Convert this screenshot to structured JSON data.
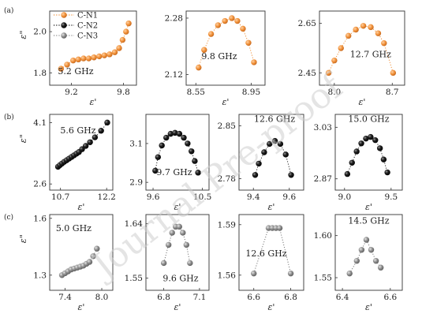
{
  "watermark": "Journal Pre-proof",
  "row_labels": [
    "(a)",
    "(b)",
    "(c)"
  ],
  "legend": [
    {
      "name": "C-N1",
      "color": "#f0913a"
    },
    {
      "name": "C-N2",
      "color": "#111111"
    },
    {
      "name": "C-N3",
      "color": "#8a8a8a"
    }
  ],
  "axis_labels": {
    "x": "ε'",
    "y": "ε\""
  },
  "chart_data": [
    {
      "type": "scatter",
      "panel": "a1",
      "series": "C-N1",
      "annotation": "5.2 GHz",
      "xlim": [
        8.95,
        9.95
      ],
      "ylim": [
        1.74,
        2.1
      ],
      "xticks": [
        "9.2",
        "9.8"
      ],
      "yticks": [
        "1.8",
        "2.0"
      ],
      "x": [
        9.08,
        9.15,
        9.22,
        9.28,
        9.34,
        9.4,
        9.46,
        9.52,
        9.58,
        9.64,
        9.7,
        9.75,
        9.79,
        9.83,
        9.86
      ],
      "y": [
        1.82,
        1.84,
        1.86,
        1.865,
        1.87,
        1.87,
        1.875,
        1.88,
        1.885,
        1.89,
        1.9,
        1.92,
        1.96,
        2.0,
        2.04
      ]
    },
    {
      "type": "scatter",
      "panel": "a2",
      "series": "C-N1",
      "annotation": "9.8 GHz",
      "xlim": [
        8.48,
        9.05
      ],
      "ylim": [
        2.09,
        2.3
      ],
      "xticks": [
        "8.55",
        "8.95"
      ],
      "yticks": [
        "2.12",
        "2.28"
      ],
      "x": [
        8.57,
        8.61,
        8.66,
        8.71,
        8.76,
        8.81,
        8.85,
        8.89,
        8.93,
        8.97
      ],
      "y": [
        2.14,
        2.19,
        2.235,
        2.26,
        2.272,
        2.28,
        2.272,
        2.25,
        2.21,
        2.155
      ]
    },
    {
      "type": "scatter",
      "panel": "a3",
      "series": "C-N1",
      "annotation": "12.7 GHz",
      "xlim": [
        7.82,
        8.85
      ],
      "ylim": [
        2.4,
        2.7
      ],
      "xticks": [
        "8.0",
        "8.7"
      ],
      "yticks": [
        "2.45",
        "2.65"
      ],
      "x": [
        7.93,
        8.0,
        8.08,
        8.17,
        8.26,
        8.35,
        8.44,
        8.53,
        8.6,
        8.71
      ],
      "y": [
        2.45,
        2.5,
        2.55,
        2.6,
        2.625,
        2.64,
        2.635,
        2.61,
        2.57,
        2.45
      ]
    },
    {
      "type": "scatter",
      "panel": "b1",
      "series": "C-N2",
      "annotation": "5.6 GHz",
      "xlim": [
        10.35,
        12.4
      ],
      "ylim": [
        2.45,
        4.3
      ],
      "xticks": [
        "10.7",
        "12.2"
      ],
      "yticks": [
        "2.6",
        "4.1"
      ],
      "x": [
        10.62,
        10.68,
        10.75,
        10.82,
        10.9,
        10.98,
        11.06,
        11.14,
        11.22,
        11.3,
        11.4,
        11.52,
        11.66,
        11.82,
        12.02,
        12.22
      ],
      "y": [
        3.02,
        3.06,
        3.1,
        3.14,
        3.18,
        3.22,
        3.26,
        3.3,
        3.34,
        3.38,
        3.45,
        3.53,
        3.62,
        3.74,
        3.9,
        4.1
      ]
    },
    {
      "type": "scatter",
      "panel": "b2",
      "series": "C-N2",
      "annotation": "9.7 GHz",
      "xlim": [
        9.47,
        10.62
      ],
      "ylim": [
        2.86,
        3.25
      ],
      "xticks": [
        "9.6",
        "10.5"
      ],
      "yticks": [
        "2.9",
        "3.1"
      ],
      "x": [
        9.64,
        9.69,
        9.76,
        9.84,
        9.92,
        10.0,
        10.08,
        10.16,
        10.23,
        10.3,
        10.36,
        10.42
      ],
      "y": [
        2.96,
        3.03,
        3.09,
        3.13,
        3.15,
        3.155,
        3.15,
        3.13,
        3.1,
        3.06,
        3.01,
        2.95
      ]
    },
    {
      "type": "scatter",
      "panel": "b3",
      "series": "C-N2",
      "annotation": "12.6 GHz",
      "xlim": [
        9.32,
        9.68
      ],
      "ylim": [
        2.765,
        2.865
      ],
      "xticks": [
        "9.4",
        "9.6"
      ],
      "yticks": [
        "2.78",
        "2.85"
      ],
      "x": [
        9.41,
        9.43,
        9.46,
        9.49,
        9.52,
        9.55,
        9.58,
        9.61
      ],
      "y": [
        2.785,
        2.8,
        2.815,
        2.826,
        2.83,
        2.826,
        2.812,
        2.785
      ]
    },
    {
      "type": "scatter",
      "panel": "b4",
      "series": "C-N2",
      "annotation": "15.0 GHz",
      "xlim": [
        8.9,
        9.62
      ],
      "ylim": [
        2.835,
        3.07
      ],
      "xticks": [
        "9.0",
        "9.5"
      ],
      "yticks": [
        "2.87",
        "3.03"
      ],
      "x": [
        9.03,
        9.08,
        9.13,
        9.18,
        9.23,
        9.28,
        9.33,
        9.38,
        9.42,
        9.46
      ],
      "y": [
        2.885,
        2.92,
        2.955,
        2.98,
        2.995,
        3.0,
        2.99,
        2.965,
        2.93,
        2.89
      ]
    },
    {
      "type": "scatter",
      "panel": "c1",
      "series": "C-N3",
      "annotation": "5.0 GHz",
      "xlim": [
        7.15,
        8.18
      ],
      "ylim": [
        1.22,
        1.62
      ],
      "xticks": [
        "7.4",
        "8.0"
      ],
      "yticks": [
        "1.3",
        "1.6"
      ],
      "x": [
        7.35,
        7.4,
        7.45,
        7.5,
        7.55,
        7.6,
        7.65,
        7.7,
        7.75,
        7.8,
        7.86,
        7.92
      ],
      "y": [
        1.3,
        1.31,
        1.32,
        1.33,
        1.335,
        1.34,
        1.345,
        1.35,
        1.36,
        1.37,
        1.4,
        1.44
      ]
    },
    {
      "type": "scatter",
      "panel": "c2",
      "series": "C-N3",
      "annotation": "9.6 GHz",
      "xlim": [
        6.65,
        7.18
      ],
      "ylim": [
        1.53,
        1.655
      ],
      "xticks": [
        "6.8",
        "7.1"
      ],
      "yticks": [
        "1.55",
        "1.64"
      ],
      "x": [
        6.8,
        6.84,
        6.87,
        6.9,
        6.93,
        6.96,
        6.99,
        7.02
      ],
      "y": [
        1.575,
        1.605,
        1.625,
        1.635,
        1.635,
        1.625,
        1.605,
        1.575
      ]
    },
    {
      "type": "scatter",
      "panel": "c3",
      "series": "C-N3",
      "annotation": "12.6 GHz",
      "xlim": [
        6.52,
        6.87
      ],
      "ylim": [
        1.551,
        1.596
      ],
      "xticks": [
        "6.6",
        "6.8"
      ],
      "yticks": [
        "1.56",
        "1.59"
      ],
      "x": [
        6.6,
        6.68,
        6.7,
        6.72,
        6.74,
        6.8
      ],
      "y": [
        1.561,
        1.588,
        1.588,
        1.588,
        1.588,
        1.561
      ]
    },
    {
      "type": "scatter",
      "panel": "c4",
      "series": "C-N3",
      "annotation": "14.5 GHz",
      "xlim": [
        6.37,
        6.65
      ],
      "ylim": [
        1.535,
        1.625
      ],
      "xticks": [
        "6.4",
        "6.6"
      ],
      "yticks": [
        "1.55",
        "1.60"
      ],
      "x": [
        6.43,
        6.46,
        6.48,
        6.5,
        6.52,
        6.54,
        6.56
      ],
      "y": [
        1.555,
        1.57,
        1.583,
        1.595,
        1.583,
        1.57,
        1.562
      ]
    }
  ]
}
